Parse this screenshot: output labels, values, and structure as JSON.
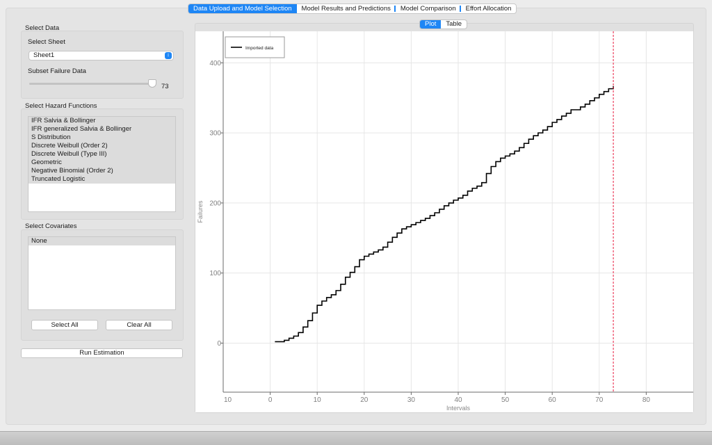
{
  "tabs": [
    {
      "label": "Data Upload and Model Selection",
      "active": true
    },
    {
      "label": "Model Results and Predictions",
      "active": false
    },
    {
      "label": "Model Comparison",
      "active": false
    },
    {
      "label": "Effort Allocation",
      "active": false
    }
  ],
  "select_data": {
    "title": "Select Data",
    "sheet_label": "Select Sheet",
    "sheet_value": "Sheet1",
    "subset_label": "Subset Failure Data",
    "subset_value": "73",
    "subset_fraction": 0.985
  },
  "hazard": {
    "title": "Select Hazard Functions",
    "items": [
      "IFR Salvia & Bollinger",
      "IFR generalized Salvia & Bollinger",
      "S Distribution",
      "Discrete Weibull (Order 2)",
      "Discrete Weibull (Type III)",
      "Geometric",
      "Negative Binomial (Order 2)",
      "Truncated Logistic"
    ]
  },
  "covariates": {
    "title": "Select Covariates",
    "items": [
      "None"
    ],
    "select_all_label": "Select All",
    "clear_all_label": "Clear All"
  },
  "run_label": "Run Estimation",
  "view_toggle": {
    "plot_label": "Plot",
    "table_label": "Table"
  },
  "chart_data": {
    "type": "line",
    "step": true,
    "xlabel": "Intervals",
    "ylabel": "Failures",
    "xlim": [
      -10,
      90
    ],
    "ylim": [
      -70,
      445
    ],
    "xticks": [
      0,
      10,
      20,
      30,
      40,
      50,
      60,
      70,
      80
    ],
    "xtick_labels": [
      "0",
      "10",
      "20",
      "30",
      "40",
      "50",
      "60",
      "70",
      "80"
    ],
    "left_edge_label": "10",
    "yticks": [
      0,
      100,
      200,
      300,
      400
    ],
    "grid": true,
    "legend_position": "top-left",
    "vline_x": 73,
    "vline_color": "#e8173a",
    "line_color": "#000000",
    "series": [
      {
        "name": "Imported data",
        "x": [
          1,
          2,
          3,
          4,
          5,
          6,
          7,
          8,
          9,
          10,
          11,
          12,
          13,
          14,
          15,
          16,
          17,
          18,
          19,
          20,
          21,
          22,
          23,
          24,
          25,
          26,
          27,
          28,
          29,
          30,
          31,
          32,
          33,
          34,
          35,
          36,
          37,
          38,
          39,
          40,
          41,
          42,
          43,
          44,
          45,
          46,
          47,
          48,
          49,
          50,
          51,
          52,
          53,
          54,
          55,
          56,
          57,
          58,
          59,
          60,
          61,
          62,
          63,
          64,
          65,
          66,
          67,
          68,
          69,
          70,
          71,
          72,
          73
        ],
        "y": [
          2,
          2,
          4,
          7,
          10,
          15,
          23,
          32,
          43,
          54,
          60,
          65,
          69,
          75,
          84,
          94,
          101,
          109,
          119,
          124,
          127,
          130,
          133,
          137,
          144,
          151,
          157,
          163,
          166,
          169,
          172,
          175,
          178,
          182,
          186,
          191,
          196,
          200,
          204,
          207,
          211,
          217,
          221,
          224,
          229,
          242,
          252,
          259,
          264,
          267,
          270,
          274,
          279,
          285,
          291,
          296,
          300,
          304,
          309,
          315,
          319,
          324,
          328,
          333,
          333,
          337,
          341,
          346,
          350,
          355,
          359,
          363,
          366
        ]
      }
    ]
  }
}
